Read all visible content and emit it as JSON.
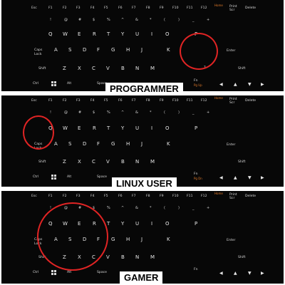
{
  "panels": [
    {
      "id": "programmer",
      "label": "PROGRAMMER"
    },
    {
      "id": "linux-user",
      "label": "LINUX USER"
    },
    {
      "id": "gamer",
      "label": "GAMER"
    }
  ],
  "keys": {
    "esc": "Esc",
    "f_keys": [
      "F1",
      "F2",
      "F3",
      "F4",
      "F5",
      "F6",
      "F7",
      "F8",
      "F9",
      "F10",
      "F11",
      "F12"
    ],
    "home": "Home",
    "print": "Print Scr",
    "delete": "Delete",
    "number_row": [
      "!",
      "@",
      "#",
      "$",
      "%",
      "^",
      "&",
      "*",
      "(",
      ")",
      "_",
      "+"
    ],
    "qwerty": [
      "Q",
      "W",
      "E",
      "R",
      "T",
      "Y",
      "U",
      "I",
      "O",
      "P"
    ],
    "caps": "Caps",
    "lock": "Lock",
    "asdf": [
      "A",
      "S",
      "D",
      "F",
      "G",
      "H",
      "J",
      "K"
    ],
    "enter": "Enter",
    "shift": "Shift",
    "zxcv": [
      "Z",
      "X",
      "C",
      "V",
      "B",
      "N",
      "M"
    ],
    "ctrl": "Ctrl",
    "alt": "Alt",
    "space": "Space",
    "fn": "Fn",
    "pg_up": "Pg Up",
    "pg_dn": "Pg Dn",
    "arrows": [
      "◀",
      "▲",
      "▼",
      "▶"
    ],
    "question": "?"
  }
}
